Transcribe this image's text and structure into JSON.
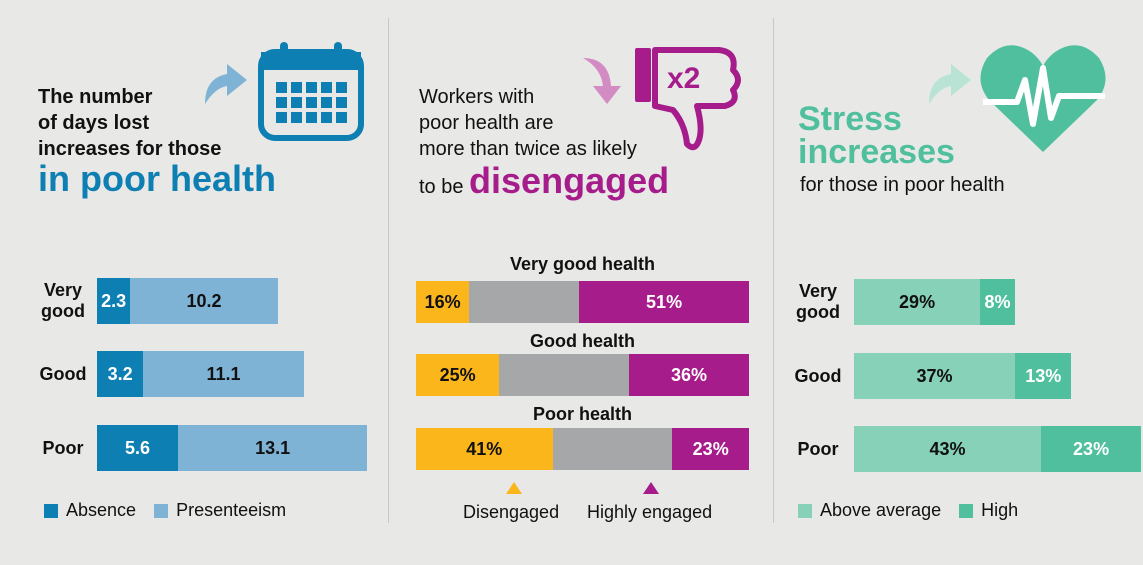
{
  "panel1": {
    "heading_lines": [
      "The number",
      "of days lost",
      "increases for those"
    ],
    "heading_big": "in poor health",
    "legend": [
      {
        "label": "Absence",
        "color": "#0e7fb3"
      },
      {
        "label": "Presenteeism",
        "color": "#7fb3d6"
      }
    ]
  },
  "panel2": {
    "heading_lines": [
      "Workers with",
      "poor health are",
      "more than twice as likely"
    ],
    "heading_prefix": "to be ",
    "heading_big": "disengaged",
    "icon_text": "x2",
    "legend": [
      {
        "label": "Disengaged",
        "color": "#fbb61b"
      },
      {
        "label": "Highly engaged",
        "color": "#a51c8a"
      }
    ]
  },
  "panel3": {
    "heading_big_lines": [
      "Stress",
      "increases"
    ],
    "heading_sub": "for those in poor health",
    "legend": [
      {
        "label": "Above average",
        "color": "#86d1b8"
      },
      {
        "label": "High",
        "color": "#4fbf9d"
      }
    ]
  },
  "chart_data": [
    {
      "type": "bar",
      "stacked": true,
      "orientation": "horizontal",
      "categories": [
        "Very good",
        "Good",
        "Poor"
      ],
      "series": [
        {
          "name": "Absence",
          "values": [
            2.3,
            3.2,
            5.6
          ],
          "color": "#0e7fb3"
        },
        {
          "name": "Presenteeism",
          "values": [
            10.2,
            11.1,
            13.1
          ],
          "color": "#7fb3d6"
        }
      ],
      "value_labels": [
        [
          "2.3",
          "10.2"
        ],
        [
          "3.2",
          "11.1"
        ],
        [
          "5.6",
          "13.1"
        ]
      ]
    },
    {
      "type": "bar",
      "stacked": true,
      "orientation": "horizontal",
      "categories": [
        "Very good health",
        "Good health",
        "Poor health"
      ],
      "series": [
        {
          "name": "Disengaged",
          "values": [
            16,
            25,
            41
          ],
          "color": "#fbb61b"
        },
        {
          "values": [
            33,
            39,
            36
          ],
          "color": "#a6a7a9"
        },
        {
          "name": "Highly engaged",
          "values": [
            51,
            36,
            23
          ],
          "color": "#a51c8a"
        }
      ],
      "value_labels": [
        [
          "16%",
          "",
          "51%"
        ],
        [
          "25%",
          "",
          "36%"
        ],
        [
          "41%",
          "",
          "23%"
        ]
      ]
    },
    {
      "type": "bar",
      "stacked": true,
      "orientation": "horizontal",
      "categories": [
        "Very good",
        "Good",
        "Poor"
      ],
      "series": [
        {
          "name": "Above average",
          "values": [
            29,
            37,
            43
          ],
          "color": "#86d1b8"
        },
        {
          "name": "High",
          "values": [
            8,
            13,
            23
          ],
          "color": "#4fbf9d"
        }
      ],
      "value_labels": [
        [
          "29%",
          "8%"
        ],
        [
          "37%",
          "13%"
        ],
        [
          "43%",
          "23%"
        ]
      ]
    }
  ]
}
